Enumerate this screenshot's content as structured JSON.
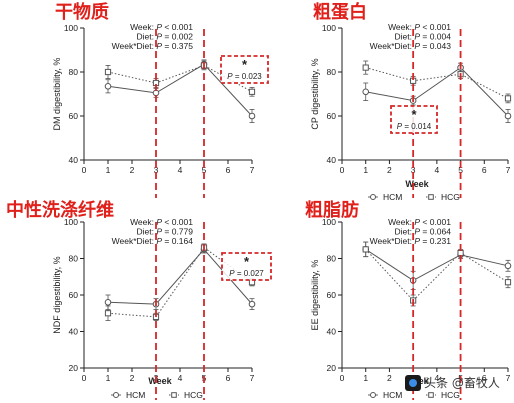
{
  "titles": [
    "干物质",
    "粗蛋白",
    "中性洗涤纤维",
    "粗脂肪"
  ],
  "watermark": "头条 @畜牧人",
  "colors": {
    "title": "#e0201b",
    "dashed_red": "#d62728",
    "series": "#555555"
  },
  "chart_data": [
    {
      "type": "line",
      "ylabel": "DM digestibility, %",
      "xlabel": "",
      "x": [
        1,
        3,
        5,
        7
      ],
      "xlim": [
        0,
        7
      ],
      "xticks": [
        "0",
        "1",
        "2",
        "3",
        "4",
        "5",
        "6",
        "7"
      ],
      "ylim": [
        40,
        100
      ],
      "yticks": [
        "40",
        "60",
        "80",
        "100"
      ],
      "series": [
        {
          "name": "HCM",
          "marker": "circle",
          "dash": "solid",
          "values": [
            73.5,
            70.5,
            83.5,
            60
          ],
          "err": [
            3,
            2,
            2,
            3
          ]
        },
        {
          "name": "HCG",
          "marker": "square",
          "dash": "dotted",
          "values": [
            80,
            75,
            83,
            71
          ],
          "err": [
            3,
            2,
            2,
            2
          ]
        }
      ],
      "stats": [
        {
          "label": "Week: ",
          "p": "P < 0.001"
        },
        {
          "label": "Diet: ",
          "p": "P = 0.002"
        },
        {
          "label": "Week*Diet: ",
          "p": "P = 0.375"
        }
      ],
      "annotation": {
        "star": "*",
        "text": "P = 0.023",
        "at_x": 7
      },
      "highlight_x": [
        3,
        5
      ],
      "legend": []
    },
    {
      "type": "line",
      "ylabel": "CP digestibility, %",
      "xlabel": "Week",
      "x": [
        1,
        3,
        5,
        7
      ],
      "xlim": [
        0,
        7
      ],
      "xticks": [
        "0",
        "1",
        "2",
        "3",
        "4",
        "5",
        "6",
        "7"
      ],
      "ylim": [
        40,
        100
      ],
      "yticks": [
        "40",
        "60",
        "80",
        "100"
      ],
      "series": [
        {
          "name": "HCM",
          "marker": "circle",
          "dash": "solid",
          "values": [
            71,
            67,
            82,
            60
          ],
          "err": [
            4,
            2,
            2,
            3
          ]
        },
        {
          "name": "HCG",
          "marker": "square",
          "dash": "dotted",
          "values": [
            82,
            76,
            79,
            68
          ],
          "err": [
            3,
            2,
            2,
            2
          ]
        }
      ],
      "stats": [
        {
          "label": "Week: ",
          "p": "P < 0.001"
        },
        {
          "label": "Diet: ",
          "p": "P = 0.004"
        },
        {
          "label": "Week*Diet: ",
          "p": "P = 0.043"
        }
      ],
      "annotation": {
        "star": "*",
        "text": "P = 0.014",
        "at_x": 3
      },
      "highlight_x": [
        3,
        5
      ],
      "legend": [
        "HCM",
        "HCG"
      ]
    },
    {
      "type": "line",
      "ylabel": "NDF digestibility, %",
      "xlabel": "Week",
      "x": [
        1,
        3,
        5,
        7
      ],
      "xlim": [
        0,
        7
      ],
      "xticks": [
        "0",
        "1",
        "2",
        "3",
        "4",
        "5",
        "6",
        "7"
      ],
      "ylim": [
        20,
        100
      ],
      "yticks": [
        "20",
        "40",
        "60",
        "80",
        "100"
      ],
      "series": [
        {
          "name": "HCM",
          "marker": "circle",
          "dash": "solid",
          "values": [
            56,
            55,
            85,
            55
          ],
          "err": [
            4,
            3,
            2,
            3
          ]
        },
        {
          "name": "HCG",
          "marker": "square",
          "dash": "dotted",
          "values": [
            50,
            48,
            86,
            67
          ],
          "err": [
            4,
            2,
            2,
            2
          ]
        }
      ],
      "stats": [
        {
          "label": "Week: ",
          "p": "P < 0.001"
        },
        {
          "label": "Diet: ",
          "p": "P = 0.779"
        },
        {
          "label": "Week*Diet: ",
          "p": "P = 0.164"
        }
      ],
      "annotation": {
        "star": "*",
        "text": "P = 0.027",
        "at_x": 7
      },
      "highlight_x": [
        3,
        5
      ],
      "legend": [
        "HCM",
        "HCG"
      ]
    },
    {
      "type": "line",
      "ylabel": "EE digestibility, %",
      "xlabel": "Week",
      "x": [
        1,
        3,
        5,
        7
      ],
      "xlim": [
        0,
        7
      ],
      "xticks": [
        "0",
        "1",
        "2",
        "3",
        "4",
        "5",
        "6",
        "7"
      ],
      "ylim": [
        20,
        100
      ],
      "yticks": [
        "20",
        "40",
        "60",
        "80",
        "100"
      ],
      "series": [
        {
          "name": "HCM",
          "marker": "circle",
          "dash": "solid",
          "values": [
            85,
            68,
            82,
            76
          ],
          "err": [
            4,
            5,
            2,
            3
          ]
        },
        {
          "name": "HCG",
          "marker": "square",
          "dash": "dotted",
          "values": [
            85,
            57,
            83,
            67
          ],
          "err": [
            4,
            3,
            2,
            3
          ]
        }
      ],
      "stats": [
        {
          "label": "Week: ",
          "p": "P < 0.001"
        },
        {
          "label": "Diet: ",
          "p": "P = 0.064"
        },
        {
          "label": "Week*Diet: ",
          "p": "P = 0.231"
        }
      ],
      "annotation": null,
      "highlight_x": [
        3,
        5
      ],
      "legend": [
        "HCM",
        "HCG"
      ]
    }
  ]
}
